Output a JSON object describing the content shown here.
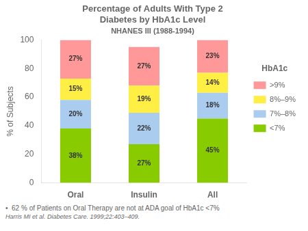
{
  "chart_data": {
    "type": "bar",
    "title": [
      "Percentage of Adults With Type 2",
      "Diabetes by HbA1c Level"
    ],
    "subtitle": "NHANES III (1988-1994)",
    "categories": [
      "Oral",
      "Insulin",
      "All"
    ],
    "series": [
      {
        "name": "<7%",
        "color": "#88cc00",
        "values": [
          38,
          27,
          45
        ],
        "value_labels": [
          "38%",
          "27%",
          "45%"
        ]
      },
      {
        "name": "7%–8%",
        "color": "#aaccee",
        "values": [
          20,
          22,
          18
        ],
        "value_labels": [
          "20%",
          "22%",
          "18%"
        ]
      },
      {
        "name": "8%–9%",
        "color": "#ffee44",
        "values": [
          15,
          19,
          14
        ],
        "value_labels": [
          "15%",
          "19%",
          "14%"
        ]
      },
      {
        "name": ">9%",
        "color": "#ff9999",
        "values": [
          27,
          27,
          23
        ],
        "value_labels": [
          "27%",
          "27%",
          "23%"
        ]
      }
    ],
    "legend_title": "HbA1c",
    "legend": "right",
    "ylabel": "% of Subjects",
    "ylim": [
      0,
      100
    ],
    "yticks": [
      0,
      20,
      40,
      60,
      80,
      100
    ],
    "stacked": true,
    "data_labels": true,
    "grid": false,
    "annotations": [
      "•  62 % of Patients on Oral Therapy are not at ADA goal of HbA1c <7%",
      "Harris MI et al. Diabetes Care. 1999;22:403–409."
    ]
  }
}
